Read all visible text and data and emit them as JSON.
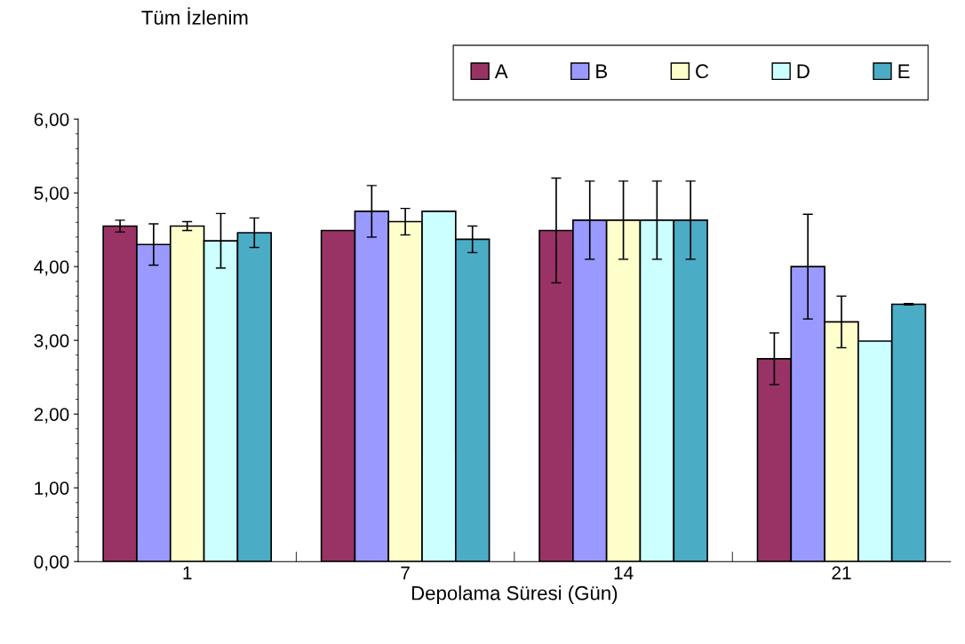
{
  "chart_data": {
    "type": "bar",
    "title": "Tüm İzlenim",
    "xlabel": "Depolama Süresi (Gün)",
    "categories": [
      "1",
      "7",
      "14",
      "21"
    ],
    "series": [
      {
        "name": "A",
        "color": "#993366",
        "values": [
          4.55,
          4.49,
          4.49,
          2.75
        ],
        "errors": [
          0.08,
          null,
          0.71,
          0.35
        ]
      },
      {
        "name": "B",
        "color": "#9999ff",
        "values": [
          4.3,
          4.75,
          4.63,
          4.0
        ],
        "errors": [
          0.28,
          0.35,
          0.53,
          0.71
        ]
      },
      {
        "name": "C",
        "color": "#ffffcc",
        "values": [
          4.55,
          4.61,
          4.63,
          3.25
        ],
        "errors": [
          0.06,
          0.18,
          0.53,
          0.35
        ]
      },
      {
        "name": "D",
        "color": "#ccffff",
        "values": [
          4.35,
          4.75,
          4.63,
          2.99
        ],
        "errors": [
          0.37,
          null,
          0.53,
          null
        ]
      },
      {
        "name": "E",
        "color": "#4bacc6",
        "values": [
          4.46,
          4.37,
          4.63,
          3.49
        ],
        "errors": [
          0.2,
          0.18,
          0.53,
          0.01
        ]
      }
    ],
    "ylim": [
      0,
      6
    ],
    "yticks": [
      {
        "value": 0,
        "label": "0,00"
      },
      {
        "value": 1,
        "label": "1,00"
      },
      {
        "value": 2,
        "label": "2,00"
      },
      {
        "value": 3,
        "label": "3,00"
      },
      {
        "value": 4,
        "label": "4,00"
      },
      {
        "value": 5,
        "label": "5,00"
      },
      {
        "value": 6,
        "label": "6,00"
      }
    ],
    "legend": "top",
    "grid": false
  }
}
